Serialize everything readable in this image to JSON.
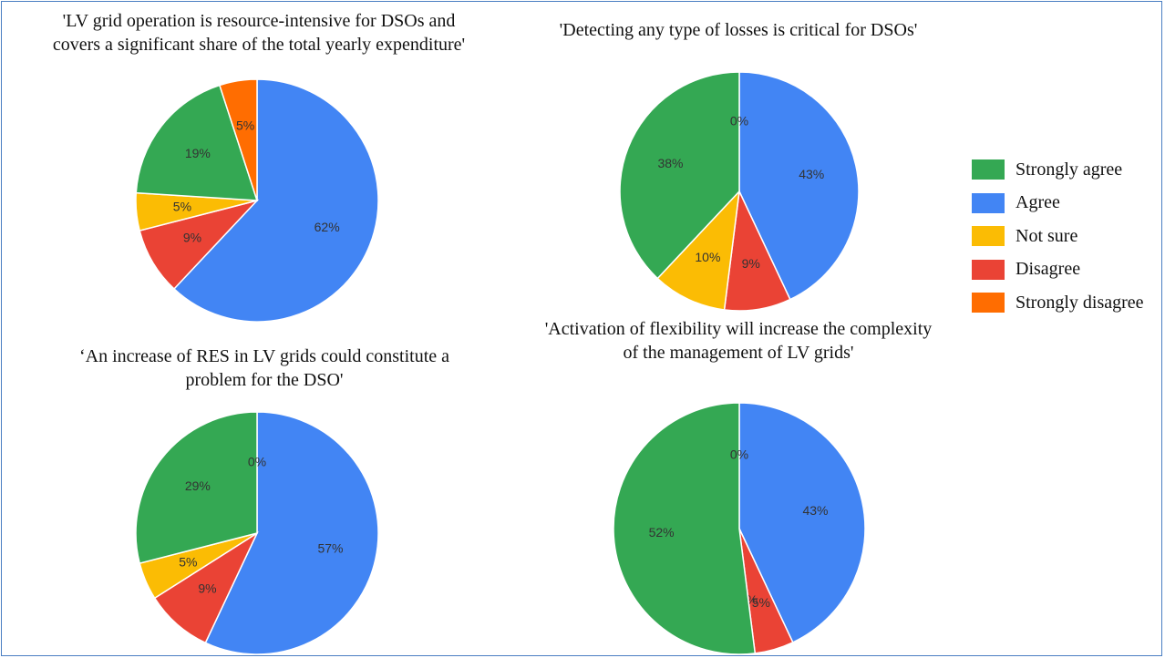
{
  "chart_data": [
    {
      "type": "pie",
      "title": "'LV grid operation is resource-intensive for DSOs and covers a significant share of the total yearly expenditure'",
      "title_lines": [
        "'LV grid operation is resource-intensive for DSOs and",
        "covers a significant share of the total yearly expenditure'"
      ],
      "slices": [
        {
          "category": "Agree",
          "value": 62,
          "label": "62%"
        },
        {
          "category": "Disagree",
          "value": 9,
          "label": "9%"
        },
        {
          "category": "Not sure",
          "value": 5,
          "label": "5%"
        },
        {
          "category": "Strongly agree",
          "value": 19,
          "label": "19%"
        },
        {
          "category": "Strongly disagree",
          "value": 5,
          "label": "5%"
        }
      ]
    },
    {
      "type": "pie",
      "title": "'Detecting any type of losses is critical for DSOs'",
      "title_lines": [
        "'Detecting any type of losses is critical for DSOs'"
      ],
      "slices": [
        {
          "category": "Agree",
          "value": 43,
          "label": "43%"
        },
        {
          "category": "Disagree",
          "value": 9,
          "label": "9%"
        },
        {
          "category": "Not sure",
          "value": 10,
          "label": "10%"
        },
        {
          "category": "Strongly agree",
          "value": 38,
          "label": "38%"
        },
        {
          "category": "Strongly disagree",
          "value": 0,
          "label": "0%"
        }
      ]
    },
    {
      "type": "pie",
      "title": "‘An increase of RES in LV grids could constitute a problem for the DSO'",
      "title_lines": [
        "‘An increase of RES in LV grids could constitute a",
        "problem for the DSO'"
      ],
      "slices": [
        {
          "category": "Agree",
          "value": 57,
          "label": "57%"
        },
        {
          "category": "Disagree",
          "value": 9,
          "label": "9%"
        },
        {
          "category": "Not sure",
          "value": 5,
          "label": "5%"
        },
        {
          "category": "Strongly agree",
          "value": 29,
          "label": "29%"
        },
        {
          "category": "Strongly disagree",
          "value": 0,
          "label": "0%"
        }
      ]
    },
    {
      "type": "pie",
      "title": "'Activation of flexibility will increase the complexity of the management of LV grids'",
      "title_lines": [
        "'Activation of flexibility will increase the complexity",
        "of the management of LV grids'"
      ],
      "slices": [
        {
          "category": "Agree",
          "value": 43,
          "label": "43%"
        },
        {
          "category": "Disagree",
          "value": 5,
          "label": "5%"
        },
        {
          "category": "Not sure",
          "value": 0,
          "label": "0%"
        },
        {
          "category": "Strongly agree",
          "value": 52,
          "label": "52%"
        },
        {
          "category": "Strongly disagree",
          "value": 0,
          "label": "0%"
        }
      ]
    }
  ],
  "legend": {
    "placement": "right",
    "items": [
      {
        "label": "Strongly agree",
        "color": "#34a853"
      },
      {
        "label": "Agree",
        "color": "#4285f4"
      },
      {
        "label": "Not sure",
        "color": "#fbbc04"
      },
      {
        "label": "Disagree",
        "color": "#ea4335"
      },
      {
        "label": "Strongly disagree",
        "color": "#ff6d01"
      }
    ]
  }
}
